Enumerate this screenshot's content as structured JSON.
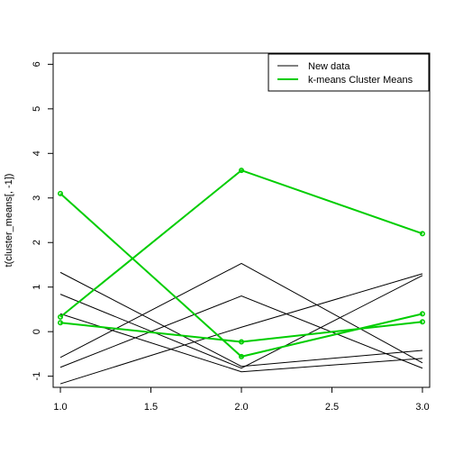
{
  "chart_data": {
    "type": "line",
    "title": "",
    "xlabel": "",
    "ylabel": "t(cluster_means[, -1])",
    "x": [
      1,
      2,
      3
    ],
    "xlim": [
      0.96,
      3.04
    ],
    "ylim": [
      -1.25,
      6.25
    ],
    "x_ticks": [
      "1.0",
      "1.5",
      "2.0",
      "2.5",
      "3.0"
    ],
    "y_ticks": [
      "-1",
      "0",
      "1",
      "2",
      "3",
      "4",
      "5",
      "6"
    ],
    "grid": false,
    "legend_position": "top-right",
    "legend": [
      {
        "label": "New data",
        "color": "#000000"
      },
      {
        "label": "k-means Cluster Means",
        "color": "#00cd00"
      }
    ],
    "new_data_series": [
      {
        "values": [
          1.33,
          -0.78,
          -0.42
        ]
      },
      {
        "values": [
          0.84,
          -0.82,
          1.26
        ]
      },
      {
        "values": [
          -0.58,
          1.53,
          -0.7
        ]
      },
      {
        "values": [
          -0.8,
          0.8,
          -0.82
        ]
      },
      {
        "values": [
          -1.17,
          0.1,
          1.3
        ]
      },
      {
        "values": [
          0.4,
          -0.9,
          -0.6
        ]
      }
    ],
    "cluster_mean_series": [
      {
        "values": [
          3.1,
          -0.56,
          0.4
        ]
      },
      {
        "values": [
          0.33,
          3.62,
          2.2
        ]
      },
      {
        "values": [
          0.2,
          -0.23,
          0.22
        ]
      }
    ]
  }
}
